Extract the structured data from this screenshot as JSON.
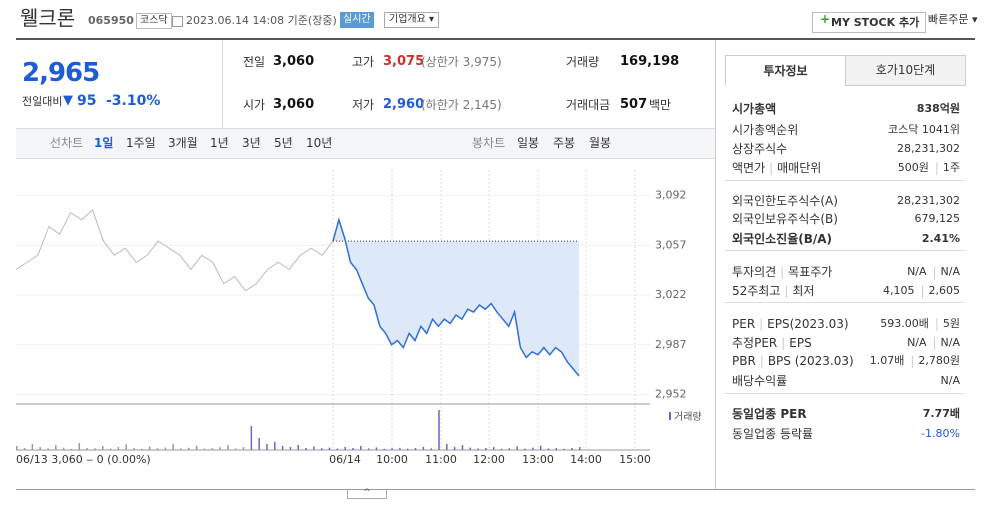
{
  "header": {
    "name": "웰크론",
    "code": "065950",
    "market": "코스닥",
    "datetime": "2023.06.14 14:08 기준(장중)",
    "realtime": "실시간",
    "company": "기업개요",
    "mystock": "MY STOCK 추가",
    "quick": "빠른주문"
  },
  "price": {
    "current": "2,965",
    "change_label": "전일대비",
    "change": "95",
    "rate": "-3.10%"
  },
  "stats": [
    {
      "label": "전일",
      "value": "3,060"
    },
    {
      "label": "시가",
      "value": "3,060"
    },
    {
      "label": "고가",
      "value": "3,075",
      "sub": "(상한가 3,975)"
    },
    {
      "label": "저가",
      "value": "2,960",
      "sub": "(하한가 2,145)"
    },
    {
      "label": "거래량",
      "value": "169,198"
    },
    {
      "label": "거래대금",
      "value": "507",
      "unit": "백만"
    }
  ],
  "tabs": {
    "line": "선차트",
    "periods": [
      "1일",
      "1주일",
      "3개월",
      "1년",
      "3년",
      "5년",
      "10년"
    ],
    "candle": "봉차트",
    "candle_periods": [
      "일봉",
      "주봉",
      "월봉"
    ]
  },
  "chart_data": {
    "type": "line",
    "ylim": [
      2946,
      3103
    ],
    "yticks": [
      {
        "value": 3092,
        "label": "3,092"
      },
      {
        "value": 3057,
        "label": "3,057"
      },
      {
        "value": 3022,
        "label": "3,022"
      },
      {
        "value": 2987,
        "label": "2,987"
      },
      {
        "value": 2952,
        "label": "2,952"
      }
    ],
    "xticks": [
      "06/14",
      "10:00",
      "11:00",
      "12:00",
      "13:00",
      "14:00",
      "15:00"
    ],
    "baseline": 3060,
    "series": [
      {
        "name": "06/13",
        "color": "#bbbbbb",
        "values": [
          3040,
          3045,
          3050,
          3070,
          3065,
          3080,
          3075,
          3082,
          3060,
          3050,
          3055,
          3045,
          3050,
          3060,
          3055,
          3050,
          3040,
          3050,
          3045,
          3030,
          3035,
          3025,
          3030,
          3040,
          3045,
          3040,
          3050,
          3055,
          3050,
          3060
        ]
      },
      {
        "name": "06/14",
        "color": "#2f6fd6",
        "values": [
          3060,
          3075,
          3062,
          3045,
          3040,
          3030,
          3020,
          3015,
          3000,
          2995,
          2987,
          2990,
          2985,
          2995,
          2990,
          3000,
          2995,
          3005,
          3000,
          3005,
          3002,
          3008,
          3005,
          3012,
          3010,
          3015,
          3012,
          3016,
          3010,
          3005,
          3000,
          3010,
          2985,
          2978,
          2982,
          2980,
          2985,
          2980,
          2985,
          2982,
          2975,
          2970,
          2965
        ]
      }
    ],
    "volume_label": "거래량",
    "volume": [
      2000,
      1000,
      3000,
      1500,
      800,
      2500,
      1200,
      600,
      3500,
      1000,
      900,
      2000,
      700,
      1500,
      2800,
      1000,
      600,
      1800,
      900,
      1200,
      3000,
      800,
      1100,
      2200,
      700,
      900,
      1400,
      2600,
      800,
      1500,
      12000,
      6000,
      3000,
      4000,
      2000,
      1500,
      2500,
      1000,
      1800,
      900,
      1200,
      700,
      1500,
      1000,
      2000,
      800,
      1300,
      600,
      900,
      1100,
      700,
      1000,
      1600,
      800,
      20000,
      3000,
      1500,
      2500,
      1200,
      800,
      1000,
      1500,
      600,
      900,
      1800,
      700,
      1200,
      2200,
      800,
      1000,
      600,
      1000,
      1500
    ],
    "footnote": "06/13 3,060 ‒ 0 (0.00%)"
  },
  "side": {
    "tabs": [
      "투자정보",
      "호가10단계"
    ],
    "sections": [
      [
        {
          "labels": [
            "시가총액"
          ],
          "values": [
            "838억원"
          ]
        },
        {
          "labels": [
            "시가총액순위"
          ],
          "values": [
            "코스닥 1041위"
          ]
        },
        {
          "labels": [
            "상장주식수"
          ],
          "values": [
            "28,231,302"
          ]
        },
        {
          "labels": [
            "액면가",
            "매매단위"
          ],
          "values": [
            "500원",
            "1주"
          ]
        }
      ],
      [
        {
          "labels": [
            "외국인한도주식수(A)"
          ],
          "values": [
            "28,231,302"
          ]
        },
        {
          "labels": [
            "외국인보유주식수(B)"
          ],
          "values": [
            "679,125"
          ]
        },
        {
          "labels": [
            "외국인소진율(B/A)"
          ],
          "values": [
            "2.41%"
          ]
        }
      ],
      [
        {
          "labels": [
            "투자의견",
            "목표주가"
          ],
          "values": [
            "N/A",
            "N/A"
          ]
        },
        {
          "labels": [
            "52주최고",
            "최저"
          ],
          "values": [
            "4,105",
            "2,605"
          ]
        }
      ],
      [
        {
          "labels": [
            "PER",
            "EPS(2023.03)"
          ],
          "values": [
            "593.00배",
            "5원"
          ]
        },
        {
          "labels": [
            "추정PER",
            "EPS"
          ],
          "values": [
            "N/A",
            "N/A"
          ]
        },
        {
          "labels": [
            "PBR",
            "BPS (2023.03)"
          ],
          "values": [
            "1.07배",
            "2,780원"
          ]
        },
        {
          "labels": [
            "배당수익률"
          ],
          "values": [
            "N/A"
          ]
        }
      ],
      [
        {
          "labels": [
            "동일업종 PER"
          ],
          "values": [
            "7.77배"
          ]
        },
        {
          "labels": [
            "동일업종 등락률"
          ],
          "values": [
            "-1.80%"
          ]
        }
      ]
    ]
  }
}
